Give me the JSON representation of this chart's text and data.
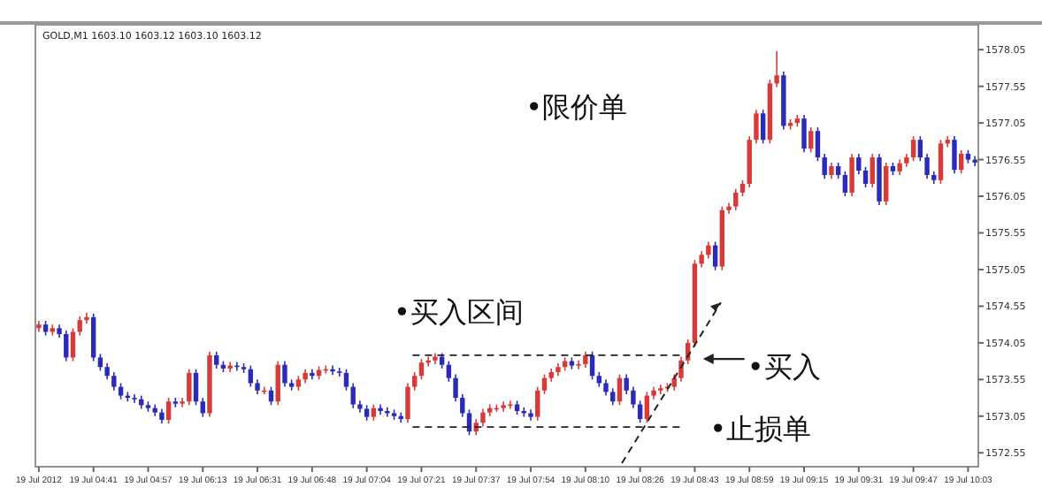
{
  "chart_data": {
    "type": "candlestick",
    "title": "GOLD,M1  1603.10 1603.12 1603.10 1603.12",
    "categories": [
      "19 Jul 2012",
      null,
      null,
      null,
      null,
      null,
      null,
      null,
      "19 Jul 04:41",
      null,
      null,
      null,
      null,
      null,
      null,
      null,
      "19 Jul 04:57",
      null,
      null,
      null,
      null,
      null,
      null,
      null,
      "19 Jul 06:13",
      null,
      null,
      null,
      null,
      null,
      null,
      null,
      "19 Jul 06:31",
      null,
      null,
      null,
      null,
      null,
      null,
      null,
      "19 Jul 06:48",
      null,
      null,
      null,
      null,
      null,
      null,
      null,
      "19 Jul 07:04",
      null,
      null,
      null,
      null,
      null,
      null,
      null,
      "19 Jul 07:21",
      null,
      null,
      null,
      null,
      null,
      null,
      null,
      "19 Jul 07:37",
      null,
      null,
      null,
      null,
      null,
      null,
      null,
      "19 Jul 07:54",
      null,
      null,
      null,
      null,
      null,
      null,
      null,
      "19 Jul 08:10",
      null,
      null,
      null,
      null,
      null,
      null,
      null,
      "19 Jul 08:26",
      null,
      null,
      null,
      null,
      null,
      null,
      null,
      "19 Jul 08:43",
      null,
      null,
      null,
      null,
      null,
      null,
      null,
      "19 Jul 08:59",
      null,
      null,
      null,
      null,
      null,
      null,
      null,
      "19 Jul 09:15",
      null,
      null,
      null,
      null,
      null,
      null,
      null,
      "19 Jul 09:31",
      null,
      null,
      null,
      null,
      null,
      null,
      null,
      "19 Jul 09:47",
      null,
      null,
      null,
      null,
      null,
      null,
      null,
      "19 Jul 10:03",
      null
    ],
    "ohlc": [
      [
        1574.25,
        1574.35,
        1574.2,
        1574.3
      ],
      [
        1574.3,
        1574.35,
        1574.15,
        1574.2
      ],
      [
        1574.2,
        1574.3,
        1574.15,
        1574.25
      ],
      [
        1574.25,
        1574.3,
        1574.12,
        1574.17
      ],
      [
        1574.17,
        1574.22,
        1573.8,
        1573.85
      ],
      [
        1573.85,
        1574.25,
        1573.8,
        1574.2
      ],
      [
        1574.2,
        1574.41,
        1574.15,
        1574.36
      ],
      [
        1574.36,
        1574.46,
        1574.31,
        1574.4
      ],
      [
        1574.4,
        1574.45,
        1573.8,
        1573.85
      ],
      [
        1573.85,
        1573.9,
        1573.67,
        1573.72
      ],
      [
        1573.72,
        1573.77,
        1573.55,
        1573.6
      ],
      [
        1573.6,
        1573.65,
        1573.4,
        1573.45
      ],
      [
        1573.45,
        1573.5,
        1573.28,
        1573.33
      ],
      [
        1573.33,
        1573.38,
        1573.25,
        1573.3
      ],
      [
        1573.3,
        1573.35,
        1573.23,
        1573.28
      ],
      [
        1573.28,
        1573.33,
        1573.15,
        1573.2
      ],
      [
        1573.2,
        1573.25,
        1573.11,
        1573.16
      ],
      [
        1573.16,
        1573.21,
        1573.05,
        1573.1
      ],
      [
        1573.1,
        1573.15,
        1572.95,
        1573.0
      ],
      [
        1573.0,
        1573.3,
        1572.95,
        1573.25
      ],
      [
        1573.25,
        1573.3,
        1573.17,
        1573.22
      ],
      [
        1573.22,
        1573.3,
        1573.17,
        1573.25
      ],
      [
        1573.25,
        1573.69,
        1573.2,
        1573.64
      ],
      [
        1573.64,
        1573.69,
        1573.2,
        1573.25
      ],
      [
        1573.25,
        1573.3,
        1573.04,
        1573.09
      ],
      [
        1573.09,
        1573.93,
        1573.04,
        1573.88
      ],
      [
        1573.88,
        1573.93,
        1573.7,
        1573.75
      ],
      [
        1573.75,
        1573.8,
        1573.65,
        1573.7
      ],
      [
        1573.7,
        1573.79,
        1573.65,
        1573.74
      ],
      [
        1573.74,
        1573.79,
        1573.67,
        1573.72
      ],
      [
        1573.72,
        1573.77,
        1573.64,
        1573.69
      ],
      [
        1573.69,
        1573.74,
        1573.45,
        1573.5
      ],
      [
        1573.5,
        1573.55,
        1573.35,
        1573.4
      ],
      [
        1573.4,
        1573.45,
        1573.35,
        1573.4
      ],
      [
        1573.4,
        1573.45,
        1573.2,
        1573.25
      ],
      [
        1573.25,
        1573.8,
        1573.2,
        1573.75
      ],
      [
        1573.75,
        1573.8,
        1573.45,
        1573.5
      ],
      [
        1573.5,
        1573.55,
        1573.4,
        1573.45
      ],
      [
        1573.45,
        1573.6,
        1573.4,
        1573.55
      ],
      [
        1573.55,
        1573.69,
        1573.5,
        1573.64
      ],
      [
        1573.64,
        1573.69,
        1573.55,
        1573.6
      ],
      [
        1573.6,
        1573.73,
        1573.55,
        1573.68
      ],
      [
        1573.68,
        1573.74,
        1573.63,
        1573.69
      ],
      [
        1573.69,
        1573.74,
        1573.61,
        1573.66
      ],
      [
        1573.66,
        1573.71,
        1573.59,
        1573.64
      ],
      [
        1573.64,
        1573.69,
        1573.4,
        1573.45
      ],
      [
        1573.45,
        1573.5,
        1573.16,
        1573.21
      ],
      [
        1573.21,
        1573.26,
        1573.1,
        1573.15
      ],
      [
        1573.15,
        1573.2,
        1572.99,
        1573.04
      ],
      [
        1573.04,
        1573.21,
        1572.99,
        1573.16
      ],
      [
        1573.16,
        1573.21,
        1573.07,
        1573.12
      ],
      [
        1573.12,
        1573.17,
        1573.04,
        1573.09
      ],
      [
        1573.09,
        1573.14,
        1573.0,
        1573.05
      ],
      [
        1573.05,
        1573.1,
        1572.96,
        1573.01
      ],
      [
        1573.01,
        1573.5,
        1572.96,
        1573.45
      ],
      [
        1573.45,
        1573.65,
        1573.4,
        1573.6
      ],
      [
        1573.6,
        1573.83,
        1573.55,
        1573.78
      ],
      [
        1573.78,
        1573.86,
        1573.73,
        1573.81
      ],
      [
        1573.81,
        1573.91,
        1573.76,
        1573.86
      ],
      [
        1573.86,
        1573.91,
        1573.7,
        1573.75
      ],
      [
        1573.75,
        1573.8,
        1573.52,
        1573.57
      ],
      [
        1573.57,
        1573.62,
        1573.25,
        1573.3
      ],
      [
        1573.3,
        1573.35,
        1573.04,
        1573.09
      ],
      [
        1573.09,
        1573.14,
        1572.79,
        1572.84
      ],
      [
        1572.84,
        1573.01,
        1572.79,
        1572.96
      ],
      [
        1572.96,
        1573.15,
        1572.91,
        1573.1
      ],
      [
        1573.1,
        1573.21,
        1573.05,
        1573.16
      ],
      [
        1573.16,
        1573.21,
        1573.11,
        1573.16
      ],
      [
        1573.16,
        1573.25,
        1573.11,
        1573.2
      ],
      [
        1573.2,
        1573.26,
        1573.15,
        1573.21
      ],
      [
        1573.21,
        1573.26,
        1573.07,
        1573.12
      ],
      [
        1573.12,
        1573.17,
        1573.04,
        1573.09
      ],
      [
        1573.09,
        1573.14,
        1572.99,
        1573.04
      ],
      [
        1573.04,
        1573.45,
        1572.99,
        1573.4
      ],
      [
        1573.4,
        1573.62,
        1573.35,
        1573.57
      ],
      [
        1573.57,
        1573.7,
        1573.52,
        1573.65
      ],
      [
        1573.65,
        1573.77,
        1573.6,
        1573.72
      ],
      [
        1573.72,
        1573.85,
        1573.67,
        1573.8
      ],
      [
        1573.8,
        1573.85,
        1573.69,
        1573.74
      ],
      [
        1573.74,
        1573.81,
        1573.69,
        1573.76
      ],
      [
        1573.76,
        1573.93,
        1573.71,
        1573.88
      ],
      [
        1573.88,
        1573.93,
        1573.55,
        1573.6
      ],
      [
        1573.6,
        1573.65,
        1573.45,
        1573.5
      ],
      [
        1573.5,
        1573.55,
        1573.33,
        1573.38
      ],
      [
        1573.38,
        1573.43,
        1573.2,
        1573.25
      ],
      [
        1573.25,
        1573.62,
        1573.2,
        1573.57
      ],
      [
        1573.57,
        1573.62,
        1573.35,
        1573.4
      ],
      [
        1573.4,
        1573.45,
        1573.16,
        1573.21
      ],
      [
        1573.21,
        1573.26,
        1572.96,
        1573.01
      ],
      [
        1573.01,
        1573.38,
        1572.96,
        1573.33
      ],
      [
        1573.33,
        1573.45,
        1573.28,
        1573.4
      ],
      [
        1573.4,
        1573.48,
        1573.35,
        1573.43
      ],
      [
        1573.43,
        1573.5,
        1573.38,
        1573.45
      ],
      [
        1573.45,
        1573.62,
        1573.4,
        1573.57
      ],
      [
        1573.57,
        1573.86,
        1573.52,
        1573.81
      ],
      [
        1573.81,
        1574.1,
        1573.76,
        1574.05
      ],
      [
        1574.05,
        1575.18,
        1574.0,
        1575.13
      ],
      [
        1575.13,
        1575.3,
        1575.08,
        1575.25
      ],
      [
        1575.25,
        1575.43,
        1575.2,
        1575.38
      ],
      [
        1575.38,
        1575.43,
        1575.04,
        1575.09
      ],
      [
        1575.09,
        1575.91,
        1575.04,
        1575.86
      ],
      [
        1575.86,
        1575.96,
        1575.81,
        1575.91
      ],
      [
        1575.91,
        1576.15,
        1575.86,
        1576.1
      ],
      [
        1576.1,
        1576.27,
        1576.05,
        1576.22
      ],
      [
        1576.22,
        1576.87,
        1576.17,
        1576.82
      ],
      [
        1576.82,
        1577.23,
        1576.77,
        1577.18
      ],
      [
        1577.18,
        1577.23,
        1576.77,
        1576.82
      ],
      [
        1576.82,
        1577.64,
        1576.77,
        1577.59
      ],
      [
        1577.59,
        1578.03,
        1577.54,
        1577.7
      ],
      [
        1577.7,
        1577.75,
        1576.96,
        1577.01
      ],
      [
        1577.01,
        1577.1,
        1576.96,
        1577.05
      ],
      [
        1577.05,
        1577.16,
        1577.0,
        1577.11
      ],
      [
        1577.11,
        1577.16,
        1576.65,
        1576.7
      ],
      [
        1576.7,
        1576.99,
        1576.65,
        1576.94
      ],
      [
        1576.94,
        1576.99,
        1576.53,
        1576.58
      ],
      [
        1576.58,
        1576.63,
        1576.29,
        1576.34
      ],
      [
        1576.34,
        1576.51,
        1576.29,
        1576.46
      ],
      [
        1576.46,
        1576.51,
        1576.29,
        1576.34
      ],
      [
        1576.34,
        1576.39,
        1576.05,
        1576.1
      ],
      [
        1576.1,
        1576.63,
        1576.05,
        1576.58
      ],
      [
        1576.58,
        1576.63,
        1576.35,
        1576.4
      ],
      [
        1576.4,
        1576.45,
        1576.17,
        1576.22
      ],
      [
        1576.22,
        1576.63,
        1576.17,
        1576.58
      ],
      [
        1576.58,
        1576.63,
        1575.93,
        1575.98
      ],
      [
        1575.98,
        1576.51,
        1575.93,
        1576.46
      ],
      [
        1576.46,
        1576.51,
        1576.34,
        1576.39
      ],
      [
        1576.39,
        1576.55,
        1576.34,
        1576.5
      ],
      [
        1576.5,
        1576.63,
        1576.45,
        1576.58
      ],
      [
        1576.58,
        1576.87,
        1576.53,
        1576.82
      ],
      [
        1576.82,
        1576.87,
        1576.53,
        1576.58
      ],
      [
        1576.58,
        1576.63,
        1576.29,
        1576.34
      ],
      [
        1576.34,
        1576.39,
        1576.22,
        1576.27
      ],
      [
        1576.27,
        1576.82,
        1576.22,
        1576.77
      ],
      [
        1576.77,
        1576.87,
        1576.72,
        1576.82
      ],
      [
        1576.82,
        1576.87,
        1576.36,
        1576.41
      ],
      [
        1576.41,
        1576.68,
        1576.36,
        1576.63
      ],
      [
        1576.63,
        1576.68,
        1576.5,
        1576.55
      ],
      [
        1576.55,
        1576.6,
        1576.46,
        1576.51
      ]
    ],
    "ylim": [
      1572.36,
      1578.39
    ],
    "yticks": [
      1572.55,
      1573.05,
      1573.55,
      1574.05,
      1574.55,
      1575.05,
      1575.55,
      1576.05,
      1576.55,
      1577.05,
      1577.55,
      1578.05
    ],
    "ref_lines": [
      {
        "axis": "y",
        "value": 1573.88,
        "line_style": "dashed"
      },
      {
        "axis": "y",
        "value": 1572.9,
        "line_style": "dashed"
      }
    ],
    "annotations": [
      "•限价单",
      "•买入区间",
      "•买入",
      "•止损单"
    ]
  }
}
